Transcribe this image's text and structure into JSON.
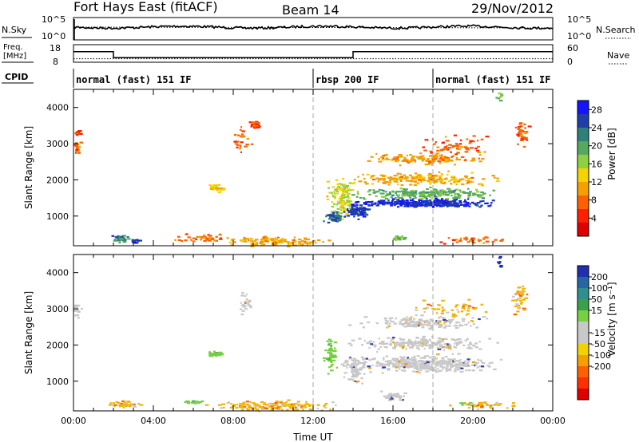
{
  "header": {
    "station": "Fort Hays East (fitACF)",
    "beam": "Beam 14",
    "date": "29/Nov/2012"
  },
  "noise_panel": {
    "left_label": "N.Sky",
    "left_ticks": [
      "10^5",
      "10^0"
    ],
    "right_ticks": [
      "10^5",
      "10^0"
    ],
    "right_label": "N.Search"
  },
  "freq_panel": {
    "left_label_line1": "Freq.",
    "left_label_line2": "[MHz]",
    "left_ticks": [
      "18",
      "8"
    ],
    "right_ticks": [
      "60",
      "0"
    ],
    "right_label": "Nave",
    "freq_segments": [
      {
        "t0": 0.0,
        "t1": 2.0,
        "value": 14
      },
      {
        "t0": 2.0,
        "t1": 14.0,
        "value": 10.6
      },
      {
        "t0": 14.0,
        "t1": 24.0,
        "value": 14
      }
    ],
    "nave_level": 12
  },
  "cpid": {
    "label": "CPID",
    "segments": [
      {
        "t": 0.0,
        "text": "normal (fast) 151 IF"
      },
      {
        "t": 12.0,
        "text": "rbsp 200 IF"
      },
      {
        "t": 18.0,
        "text": "normal (fast) 151 IF"
      }
    ]
  },
  "chart_data": [
    {
      "type": "heatmap",
      "name": "power",
      "ylabel": "Slant Range [km]",
      "yticks": [
        "1000",
        "2000",
        "3000",
        "4000"
      ],
      "ylim": [
        180,
        4500
      ],
      "colorbar_label": "Power [dB]",
      "colorbar_ticks": [
        "4",
        "8",
        "12",
        "16",
        "20",
        "24",
        "28"
      ],
      "colorbar_range": [
        0,
        30
      ],
      "colorbar_colors": [
        "#1414ff",
        "#1f3ea8",
        "#2f7f7a",
        "#55a860",
        "#8fd040",
        "#f5d200",
        "#f5a000",
        "#ff6000",
        "#ff2000",
        "#e00000"
      ],
      "clusters": [
        {
          "t": 0.1,
          "r": 2900,
          "dt": 0.3,
          "dr": 250,
          "level": 8,
          "n": 25
        },
        {
          "t": 0.15,
          "r": 3300,
          "dt": 0.2,
          "dr": 150,
          "level": 6,
          "n": 10
        },
        {
          "t": 2.4,
          "r": 390,
          "dt": 0.6,
          "dr": 120,
          "level": 22,
          "n": 35
        },
        {
          "t": 3.0,
          "r": 330,
          "dt": 0.4,
          "dr": 80,
          "level": 26,
          "n": 15
        },
        {
          "t": 7.1,
          "r": 1780,
          "dt": 0.5,
          "dr": 120,
          "level": 13,
          "n": 35
        },
        {
          "t": 9.0,
          "r": 3550,
          "dt": 0.4,
          "dr": 180,
          "level": 6,
          "n": 25
        },
        {
          "t": 8.3,
          "r": 3100,
          "dt": 0.8,
          "dr": 600,
          "level": 7,
          "n": 25
        },
        {
          "t": 6.5,
          "r": 420,
          "dt": 2.0,
          "dr": 150,
          "level": 8,
          "n": 40
        },
        {
          "t": 10.0,
          "r": 320,
          "dt": 3.5,
          "dr": 200,
          "level": 11,
          "n": 120
        },
        {
          "t": 13.4,
          "r": 1500,
          "dt": 1.0,
          "dr": 700,
          "level": 15,
          "n": 120
        },
        {
          "t": 14.2,
          "r": 1150,
          "dt": 0.8,
          "dr": 250,
          "level": 26,
          "n": 80
        },
        {
          "t": 17.5,
          "r": 1380,
          "dt": 4.5,
          "dr": 160,
          "level": 27,
          "n": 320
        },
        {
          "t": 17.5,
          "r": 1650,
          "dt": 4.5,
          "dr": 200,
          "level": 19,
          "n": 220
        },
        {
          "t": 17.5,
          "r": 2050,
          "dt": 4.5,
          "dr": 250,
          "level": 11,
          "n": 200
        },
        {
          "t": 17.5,
          "r": 2600,
          "dt": 4.0,
          "dr": 200,
          "level": 10,
          "n": 140
        },
        {
          "t": 19.0,
          "r": 2950,
          "dt": 2.5,
          "dr": 400,
          "level": 7,
          "n": 70
        },
        {
          "t": 22.4,
          "r": 3300,
          "dt": 0.4,
          "dr": 400,
          "level": 7,
          "n": 40
        },
        {
          "t": 21.3,
          "r": 4300,
          "dt": 0.2,
          "dr": 300,
          "level": 18,
          "n": 10
        },
        {
          "t": 16.3,
          "r": 420,
          "dt": 0.6,
          "dr": 80,
          "level": 18,
          "n": 20
        },
        {
          "t": 20.0,
          "r": 350,
          "dt": 2.0,
          "dr": 120,
          "level": 8,
          "n": 40
        },
        {
          "t": 13.0,
          "r": 1000,
          "dt": 0.6,
          "dr": 200,
          "level": 24,
          "n": 50
        }
      ]
    },
    {
      "type": "heatmap",
      "name": "velocity",
      "ylabel": "Slant Range [km]",
      "yticks": [
        "1000",
        "2000",
        "3000",
        "4000"
      ],
      "ylim": [
        180,
        4500
      ],
      "xlabel": "Time UT",
      "xticks": [
        "00:00",
        "04:00",
        "08:00",
        "12:00",
        "16:00",
        "20:00",
        "00:00"
      ],
      "xlim": [
        0,
        24
      ],
      "colorbar_label": "Velocity [m s⁻¹]",
      "colorbar_ticks": [
        "200",
        "100",
        "50",
        "15",
        "-15",
        "-50",
        "-100",
        "-200"
      ],
      "colorbar_colors": [
        "#1f2fb0",
        "#2766a3",
        "#2f8f8f",
        "#3aa04a",
        "#76d040",
        "#c8c8c8",
        "#c8c8c8",
        "#f2d200",
        "#f5a000",
        "#ff6000",
        "#ff3000",
        "#e00000"
      ],
      "clusters": [
        {
          "t": 0.1,
          "r": 3000,
          "dt": 0.3,
          "dr": 300,
          "kind": "grey",
          "n": 20
        },
        {
          "t": 2.4,
          "r": 380,
          "dt": 1.0,
          "dr": 120,
          "kind": "orange",
          "n": 50
        },
        {
          "t": 7.1,
          "r": 1780,
          "dt": 0.5,
          "dr": 120,
          "kind": "green",
          "n": 35
        },
        {
          "t": 6.0,
          "r": 450,
          "dt": 0.8,
          "dr": 80,
          "kind": "green",
          "n": 20
        },
        {
          "t": 8.5,
          "r": 3200,
          "dt": 0.5,
          "dr": 400,
          "kind": "grey",
          "n": 25
        },
        {
          "t": 10.0,
          "r": 330,
          "dt": 4.0,
          "dr": 200,
          "kind": "orange",
          "n": 160
        },
        {
          "t": 12.8,
          "r": 1800,
          "dt": 0.4,
          "dr": 700,
          "kind": "green",
          "n": 60
        },
        {
          "t": 14.0,
          "r": 1350,
          "dt": 0.8,
          "dr": 500,
          "kind": "grey",
          "n": 80
        },
        {
          "t": 17.5,
          "r": 1500,
          "dt": 4.5,
          "dr": 300,
          "kind": "grey",
          "n": 380
        },
        {
          "t": 17.5,
          "r": 2050,
          "dt": 4.5,
          "dr": 250,
          "kind": "grey",
          "n": 220
        },
        {
          "t": 17.5,
          "r": 2650,
          "dt": 4.0,
          "dr": 250,
          "kind": "grey",
          "n": 160
        },
        {
          "t": 19.0,
          "r": 3000,
          "dt": 2.5,
          "dr": 400,
          "kind": "orange",
          "n": 50
        },
        {
          "t": 22.3,
          "r": 3300,
          "dt": 0.5,
          "dr": 600,
          "kind": "orange",
          "n": 45
        },
        {
          "t": 16.0,
          "r": 600,
          "dt": 0.8,
          "dr": 200,
          "kind": "grey",
          "n": 40
        },
        {
          "t": 19.5,
          "r": 400,
          "dt": 0.5,
          "dr": 60,
          "kind": "green",
          "n": 12
        },
        {
          "t": 20.5,
          "r": 350,
          "dt": 2.0,
          "dr": 150,
          "kind": "orange",
          "n": 40
        },
        {
          "t": 21.3,
          "r": 4300,
          "dt": 0.2,
          "dr": 300,
          "kind": "blue",
          "n": 8
        }
      ]
    }
  ]
}
